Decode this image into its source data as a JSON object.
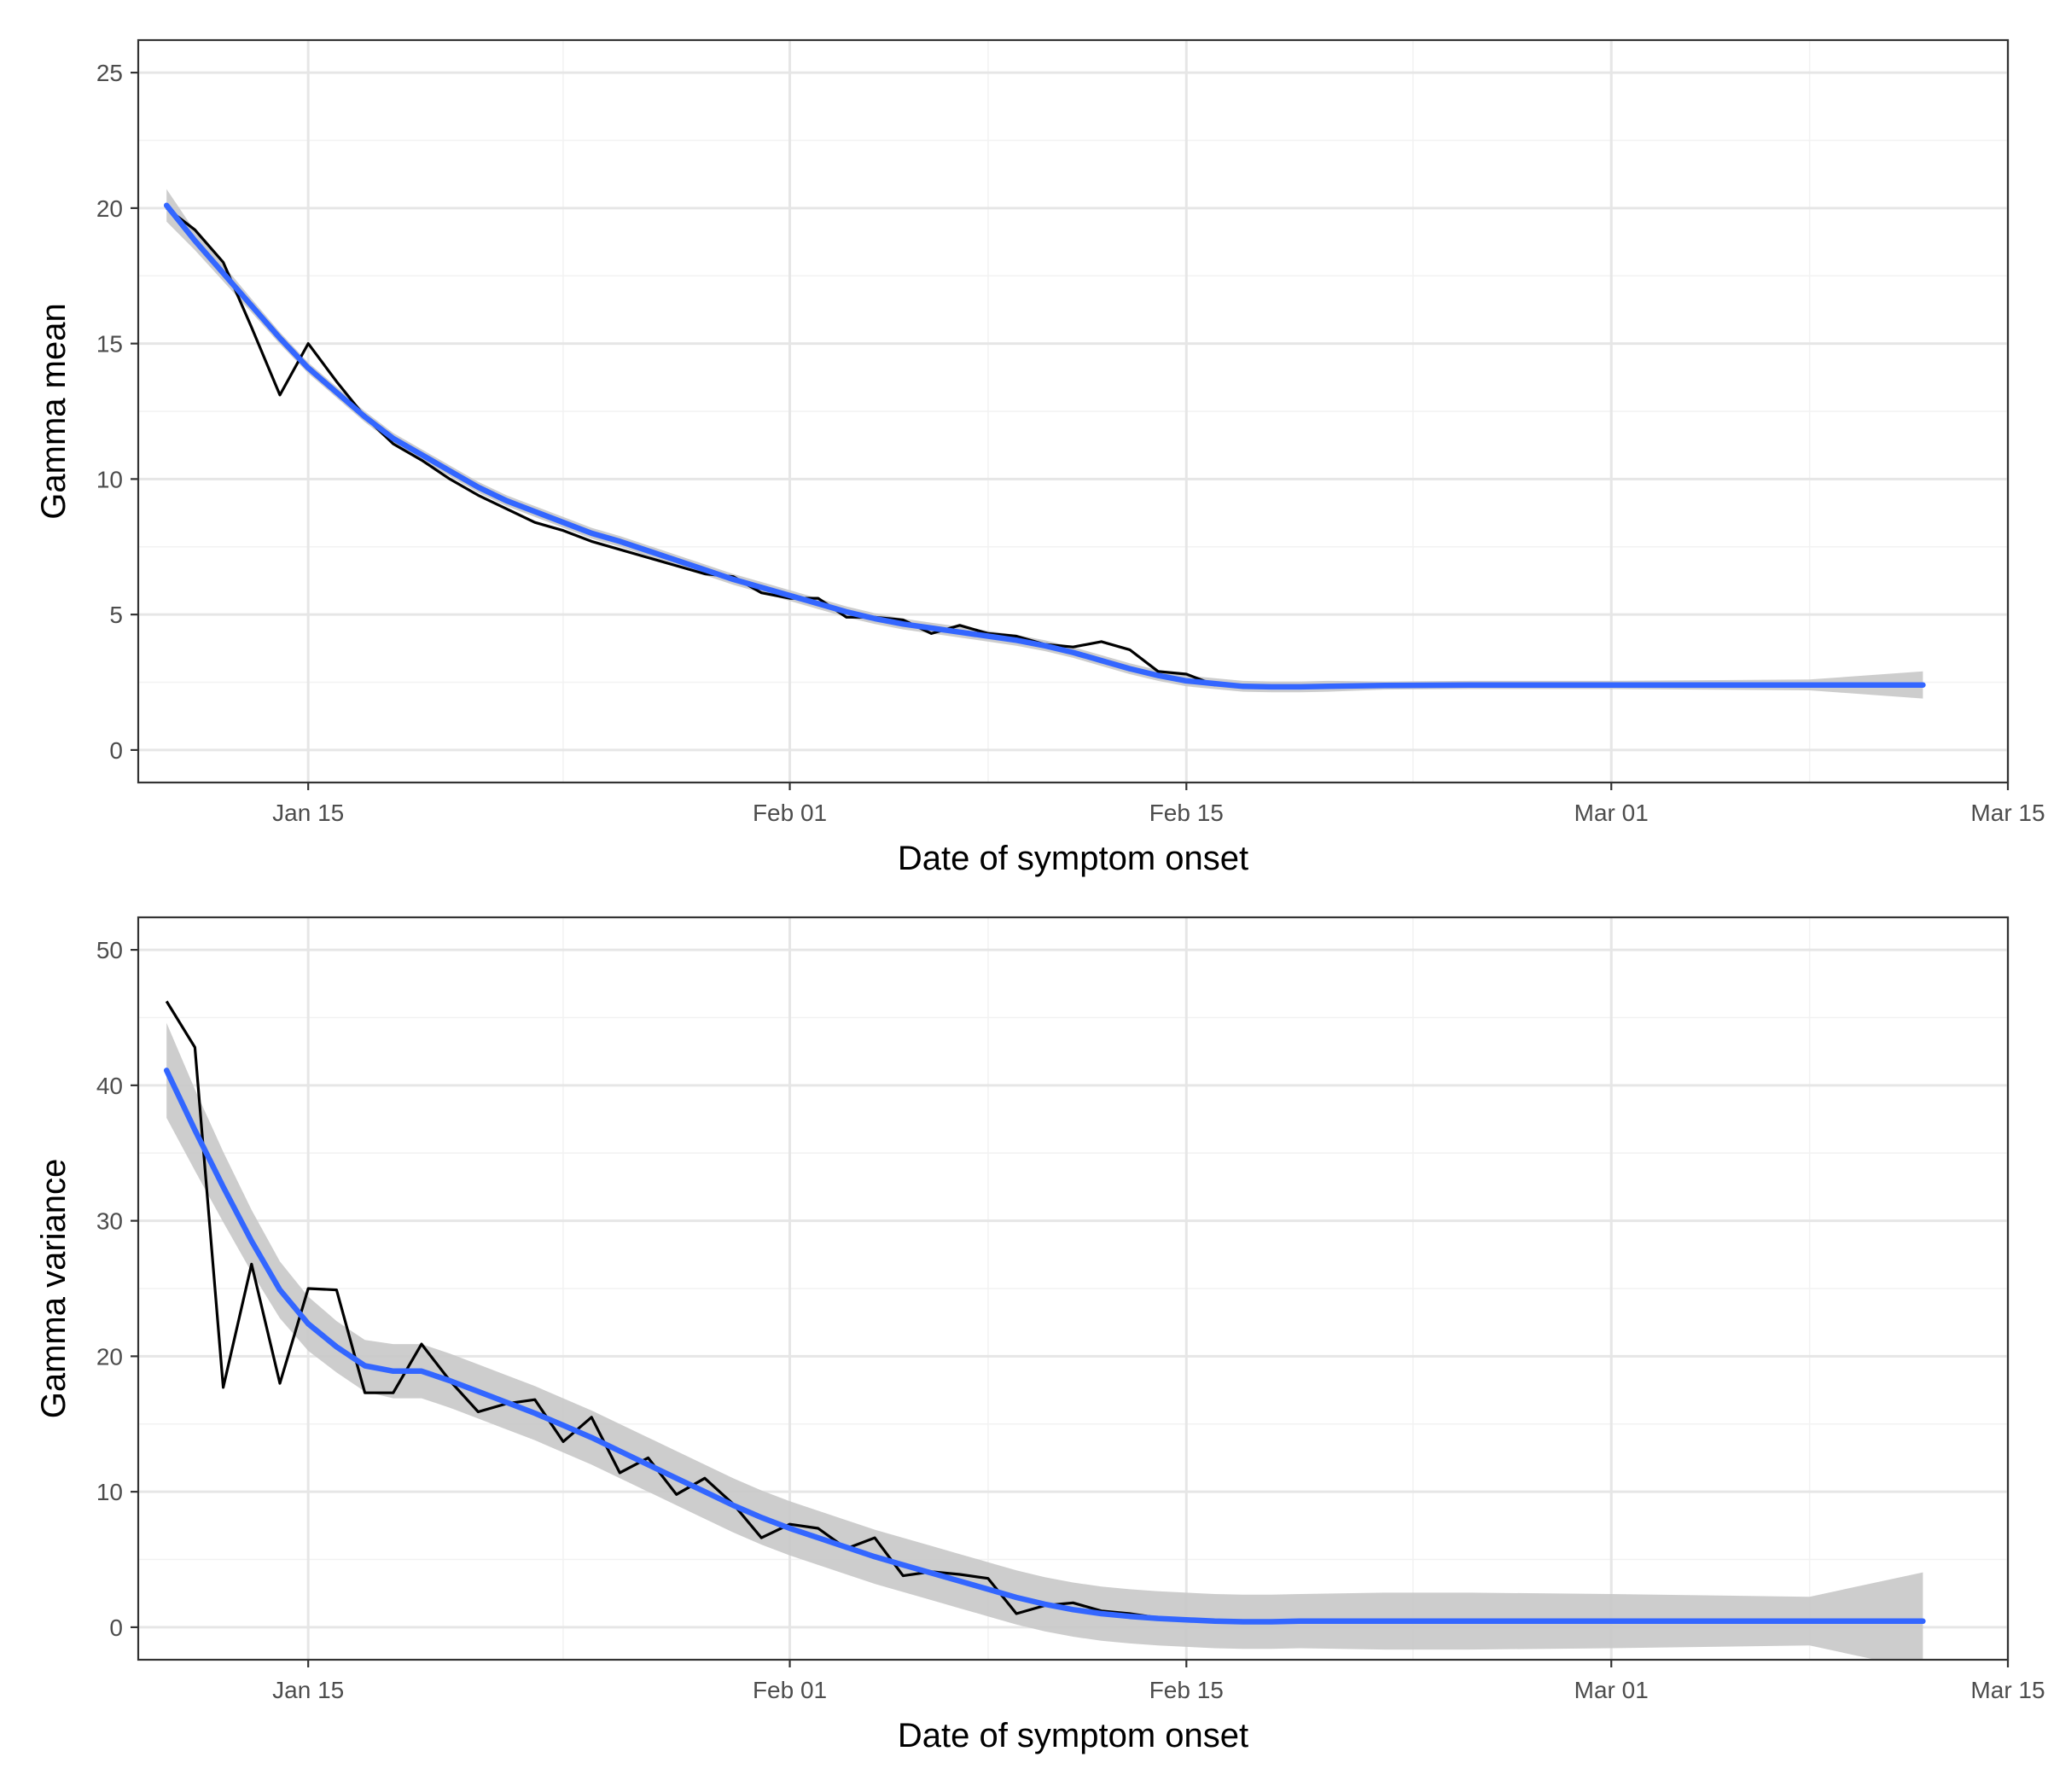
{
  "colors": {
    "raw_line": "#000000",
    "smooth_line": "#3366FF",
    "ribbon": "#C8C8C8",
    "grid_major": "#E6E6E6",
    "grid_minor": "#F2F2F2",
    "panel_border": "#333333"
  },
  "chart_data": [
    {
      "type": "line",
      "xlabel": "Date of symptom onset",
      "ylabel": "Gamma mean",
      "x_range": [
        "2020-01-09",
        "2020-03-15"
      ],
      "ylim": [
        -1.2,
        26.2
      ],
      "x_ticks": [
        "Jan 15",
        "Feb 01",
        "Feb 15",
        "Mar 01",
        "Mar 15"
      ],
      "x_tick_dates": [
        "2020-01-15",
        "2020-02-01",
        "2020-02-15",
        "2020-03-01",
        "2020-03-15"
      ],
      "x_minor_dates": [
        "2020-01-24",
        "2020-02-08",
        "2020-02-23",
        "2020-03-08"
      ],
      "y_ticks": [
        0,
        5,
        10,
        15,
        20,
        25
      ],
      "y_minor": [
        2.5,
        7.5,
        12.5,
        17.5,
        22.5
      ],
      "grid": true,
      "series": [
        {
          "style": "raw",
          "points": [
            [
              "2020-01-10",
              20.0
            ],
            [
              "2020-01-11",
              19.2
            ],
            [
              "2020-01-12",
              18.0
            ],
            [
              "2020-01-13",
              15.6
            ],
            [
              "2020-01-14",
              13.1
            ],
            [
              "2020-01-15",
              15.0
            ],
            [
              "2020-01-16",
              13.6
            ],
            [
              "2020-01-17",
              12.3
            ],
            [
              "2020-01-18",
              11.3
            ],
            [
              "2020-01-19",
              10.7
            ],
            [
              "2020-01-20",
              10.0
            ],
            [
              "2020-01-21",
              9.4
            ],
            [
              "2020-01-22",
              8.9
            ],
            [
              "2020-01-23",
              8.4
            ],
            [
              "2020-01-24",
              8.1
            ],
            [
              "2020-01-25",
              7.7
            ],
            [
              "2020-01-26",
              7.4
            ],
            [
              "2020-01-27",
              7.1
            ],
            [
              "2020-01-28",
              6.8
            ],
            [
              "2020-01-29",
              6.5
            ],
            [
              "2020-01-30",
              6.4
            ],
            [
              "2020-01-31",
              5.8
            ],
            [
              "2020-02-01",
              5.6
            ],
            [
              "2020-02-02",
              5.6
            ],
            [
              "2020-02-03",
              4.9
            ],
            [
              "2020-02-04",
              4.9
            ],
            [
              "2020-02-05",
              4.8
            ],
            [
              "2020-02-06",
              4.3
            ],
            [
              "2020-02-07",
              4.6
            ],
            [
              "2020-02-08",
              4.3
            ],
            [
              "2020-02-09",
              4.2
            ],
            [
              "2020-02-10",
              3.9
            ],
            [
              "2020-02-11",
              3.8
            ],
            [
              "2020-02-12",
              4.0
            ],
            [
              "2020-02-13",
              3.7
            ],
            [
              "2020-02-14",
              2.9
            ],
            [
              "2020-02-15",
              2.8
            ],
            [
              "2020-02-16",
              2.4
            ],
            [
              "2020-02-17",
              2.4
            ]
          ]
        },
        {
          "style": "smooth",
          "points": [
            [
              "2020-01-10",
              20.1
            ],
            [
              "2020-01-11",
              18.8
            ],
            [
              "2020-01-12",
              17.6
            ],
            [
              "2020-01-13",
              16.4
            ],
            [
              "2020-01-14",
              15.2
            ],
            [
              "2020-01-15",
              14.1
            ],
            [
              "2020-01-16",
              13.2
            ],
            [
              "2020-01-17",
              12.3
            ],
            [
              "2020-01-18",
              11.5
            ],
            [
              "2020-01-19",
              10.9
            ],
            [
              "2020-01-20",
              10.3
            ],
            [
              "2020-01-21",
              9.7
            ],
            [
              "2020-01-22",
              9.2
            ],
            [
              "2020-01-23",
              8.8
            ],
            [
              "2020-01-24",
              8.4
            ],
            [
              "2020-01-25",
              8.0
            ],
            [
              "2020-01-26",
              7.7
            ],
            [
              "2020-01-27",
              7.35
            ],
            [
              "2020-01-28",
              7.0
            ],
            [
              "2020-01-29",
              6.65
            ],
            [
              "2020-01-30",
              6.3
            ],
            [
              "2020-01-31",
              6.0
            ],
            [
              "2020-02-01",
              5.7
            ],
            [
              "2020-02-02",
              5.4
            ],
            [
              "2020-02-03",
              5.1
            ],
            [
              "2020-02-04",
              4.85
            ],
            [
              "2020-02-05",
              4.65
            ],
            [
              "2020-02-06",
              4.5
            ],
            [
              "2020-02-07",
              4.35
            ],
            [
              "2020-02-08",
              4.2
            ],
            [
              "2020-02-09",
              4.05
            ],
            [
              "2020-02-10",
              3.85
            ],
            [
              "2020-02-11",
              3.6
            ],
            [
              "2020-02-12",
              3.3
            ],
            [
              "2020-02-13",
              3.0
            ],
            [
              "2020-02-14",
              2.75
            ],
            [
              "2020-02-15",
              2.55
            ],
            [
              "2020-02-16",
              2.45
            ],
            [
              "2020-02-17",
              2.35
            ],
            [
              "2020-02-18",
              2.33
            ],
            [
              "2020-02-19",
              2.33
            ],
            [
              "2020-02-20",
              2.35
            ],
            [
              "2020-02-22",
              2.38
            ],
            [
              "2020-02-25",
              2.4
            ],
            [
              "2020-03-01",
              2.4
            ],
            [
              "2020-03-08",
              2.4
            ],
            [
              "2020-03-12",
              2.4
            ]
          ],
          "band_half_width": [
            0.6,
            0.35,
            0.3,
            0.25,
            0.22,
            0.2,
            0.2,
            0.2,
            0.2,
            0.2,
            0.2,
            0.2,
            0.2,
            0.2,
            0.2,
            0.2,
            0.2,
            0.2,
            0.2,
            0.2,
            0.2,
            0.2,
            0.2,
            0.2,
            0.2,
            0.2,
            0.2,
            0.2,
            0.2,
            0.2,
            0.2,
            0.2,
            0.2,
            0.2,
            0.2,
            0.2,
            0.2,
            0.2,
            0.2,
            0.2,
            0.2,
            0.2,
            0.15,
            0.15,
            0.15,
            0.2,
            0.5
          ]
        }
      ]
    },
    {
      "type": "line",
      "xlabel": "Date of symptom onset",
      "ylabel": "Gamma variance",
      "x_range": [
        "2020-01-09",
        "2020-03-15"
      ],
      "ylim": [
        -2.4,
        52.4
      ],
      "x_ticks": [
        "Jan 15",
        "Feb 01",
        "Feb 15",
        "Mar 01",
        "Mar 15"
      ],
      "x_tick_dates": [
        "2020-01-15",
        "2020-02-01",
        "2020-02-15",
        "2020-03-01",
        "2020-03-15"
      ],
      "x_minor_dates": [
        "2020-01-24",
        "2020-02-08",
        "2020-02-23",
        "2020-03-08"
      ],
      "y_ticks": [
        0,
        10,
        20,
        30,
        40,
        50
      ],
      "y_minor": [
        5,
        15,
        25,
        35,
        45
      ],
      "grid": true,
      "series": [
        {
          "style": "raw",
          "points": [
            [
              "2020-01-10",
              46.2
            ],
            [
              "2020-01-11",
              42.8
            ],
            [
              "2020-01-12",
              17.7
            ],
            [
              "2020-01-13",
              26.8
            ],
            [
              "2020-01-14",
              18.0
            ],
            [
              "2020-01-15",
              25.0
            ],
            [
              "2020-01-16",
              24.9
            ],
            [
              "2020-01-17",
              17.3
            ],
            [
              "2020-01-18",
              17.3
            ],
            [
              "2020-01-19",
              20.9
            ],
            [
              "2020-01-20",
              18.2
            ],
            [
              "2020-01-21",
              15.9
            ],
            [
              "2020-01-22",
              16.5
            ],
            [
              "2020-01-23",
              16.8
            ],
            [
              "2020-01-24",
              13.7
            ],
            [
              "2020-01-25",
              15.5
            ],
            [
              "2020-01-26",
              11.4
            ],
            [
              "2020-01-27",
              12.5
            ],
            [
              "2020-01-28",
              9.8
            ],
            [
              "2020-01-29",
              11.0
            ],
            [
              "2020-01-30",
              9.1
            ],
            [
              "2020-01-31",
              6.6
            ],
            [
              "2020-02-01",
              7.6
            ],
            [
              "2020-02-02",
              7.3
            ],
            [
              "2020-02-03",
              5.8
            ],
            [
              "2020-02-04",
              6.6
            ],
            [
              "2020-02-05",
              3.8
            ],
            [
              "2020-02-06",
              4.1
            ],
            [
              "2020-02-07",
              3.9
            ],
            [
              "2020-02-08",
              3.6
            ],
            [
              "2020-02-09",
              1.0
            ],
            [
              "2020-02-10",
              1.6
            ],
            [
              "2020-02-11",
              1.8
            ],
            [
              "2020-02-12",
              1.2
            ],
            [
              "2020-02-13",
              1.0
            ],
            [
              "2020-02-14",
              0.7
            ]
          ]
        },
        {
          "style": "smooth",
          "points": [
            [
              "2020-01-10",
              41.1
            ],
            [
              "2020-01-11",
              36.7
            ],
            [
              "2020-01-12",
              32.5
            ],
            [
              "2020-01-13",
              28.5
            ],
            [
              "2020-01-14",
              24.9
            ],
            [
              "2020-01-15",
              22.4
            ],
            [
              "2020-01-16",
              20.7
            ],
            [
              "2020-01-17",
              19.3
            ],
            [
              "2020-01-18",
              18.9
            ],
            [
              "2020-01-19",
              18.9
            ],
            [
              "2020-01-20",
              18.2
            ],
            [
              "2020-01-21",
              17.4
            ],
            [
              "2020-01-22",
              16.6
            ],
            [
              "2020-01-23",
              15.8
            ],
            [
              "2020-01-24",
              14.9
            ],
            [
              "2020-01-25",
              14.0
            ],
            [
              "2020-01-26",
              13.0
            ],
            [
              "2020-01-27",
              12.0
            ],
            [
              "2020-01-28",
              11.0
            ],
            [
              "2020-01-29",
              10.0
            ],
            [
              "2020-01-30",
              9.0
            ],
            [
              "2020-01-31",
              8.1
            ],
            [
              "2020-02-01",
              7.3
            ],
            [
              "2020-02-02",
              6.6
            ],
            [
              "2020-02-03",
              5.9
            ],
            [
              "2020-02-04",
              5.2
            ],
            [
              "2020-02-05",
              4.6
            ],
            [
              "2020-02-06",
              4.0
            ],
            [
              "2020-02-07",
              3.4
            ],
            [
              "2020-02-08",
              2.8
            ],
            [
              "2020-02-09",
              2.2
            ],
            [
              "2020-02-10",
              1.7
            ],
            [
              "2020-02-11",
              1.3
            ],
            [
              "2020-02-12",
              1.0
            ],
            [
              "2020-02-13",
              0.8
            ],
            [
              "2020-02-14",
              0.65
            ],
            [
              "2020-02-15",
              0.55
            ],
            [
              "2020-02-16",
              0.45
            ],
            [
              "2020-02-17",
              0.4
            ],
            [
              "2020-02-18",
              0.4
            ],
            [
              "2020-02-19",
              0.45
            ],
            [
              "2020-02-22",
              0.45
            ],
            [
              "2020-02-25",
              0.45
            ],
            [
              "2020-03-01",
              0.45
            ],
            [
              "2020-03-08",
              0.45
            ],
            [
              "2020-03-12",
              0.45
            ]
          ],
          "band_half_width": [
            3.5,
            3.0,
            2.6,
            2.3,
            2.1,
            2.0,
            1.9,
            1.9,
            2.0,
            2.0,
            2.0,
            2.0,
            2.0,
            2.0,
            2.0,
            2.0,
            2.0,
            2.0,
            2.0,
            2.0,
            2.0,
            2.0,
            2.0,
            2.0,
            2.0,
            2.0,
            2.0,
            2.0,
            2.0,
            2.0,
            2.0,
            2.0,
            2.0,
            2.0,
            2.0,
            2.0,
            2.0,
            2.0,
            2.0,
            2.0,
            2.0,
            2.1,
            2.1,
            2.0,
            1.8,
            3.6
          ]
        }
      ]
    }
  ]
}
